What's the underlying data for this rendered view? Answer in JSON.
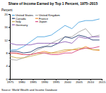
{
  "chart_data": {
    "type": "line",
    "title": "Share of Income Earned by Top 1 Percent, 1975–2015",
    "y_label": "Percent",
    "source": "Source: World Wealth and Income Database",
    "x": [
      1975,
      1978,
      1981,
      1984,
      1987,
      1990,
      1993,
      1996,
      1999,
      2002,
      2005,
      2008,
      2011,
      2014
    ],
    "xlim": [
      1975,
      2015
    ],
    "xticks": [
      1975,
      1980,
      1985,
      1990,
      1995,
      2000,
      2005,
      2010,
      2015
    ],
    "ylim": [
      0,
      20
    ],
    "yticks": [
      0,
      4,
      8,
      12,
      16,
      20
    ],
    "grid": false,
    "legend": "upper-left",
    "series": [
      {
        "name": "United States",
        "color": "#4aa3df",
        "values": [
          8.9,
          9.0,
          10.0,
          11.5,
          13.0,
          13.0,
          13.5,
          15.0,
          16.5,
          15.5,
          17.5,
          18.0,
          18.0,
          18.5
        ]
      },
      {
        "name": "United Kingdom",
        "color": "#a5a5a5",
        "values": [
          6.0,
          5.8,
          6.5,
          7.5,
          9.0,
          9.8,
          11.0,
          12.0,
          13.0,
          13.0,
          14.5,
          15.5,
          13.0,
          13.5
        ]
      },
      {
        "name": "Canada",
        "color": "#1f3a6e",
        "values": [
          8.5,
          8.5,
          8.0,
          8.3,
          9.5,
          10.0,
          10.0,
          11.0,
          13.0,
          12.5,
          13.5,
          13.0,
          12.0,
          12.0
        ]
      },
      {
        "name": "France",
        "color": "#f08c2e",
        "values": [
          8.0,
          7.8,
          7.5,
          7.5,
          8.0,
          8.5,
          8.0,
          8.0,
          8.5,
          9.0,
          9.0,
          10.0,
          9.0,
          8.8
        ]
      },
      {
        "name": "Italy",
        "color": "#c9a94e",
        "values": [
          7.0,
          6.5,
          6.5,
          7.0,
          7.5,
          8.0,
          8.0,
          8.5,
          9.0,
          9.0,
          9.5,
          9.5,
          9.0,
          9.0
        ]
      },
      {
        "name": "Japan",
        "color": "#d6457f",
        "values": [
          8.0,
          8.0,
          7.5,
          7.5,
          8.0,
          8.0,
          7.5,
          7.5,
          8.0,
          8.0,
          9.0,
          9.5,
          9.5,
          10.0
        ]
      },
      {
        "name": "Germany",
        "color": "#8a5bb5",
        "values": [
          11.0,
          10.5,
          10.5,
          10.5,
          11.0,
          11.0,
          11.0,
          11.0,
          11.5,
          11.0,
          13.0,
          12.5,
          13.0,
          13.0
        ]
      }
    ]
  }
}
